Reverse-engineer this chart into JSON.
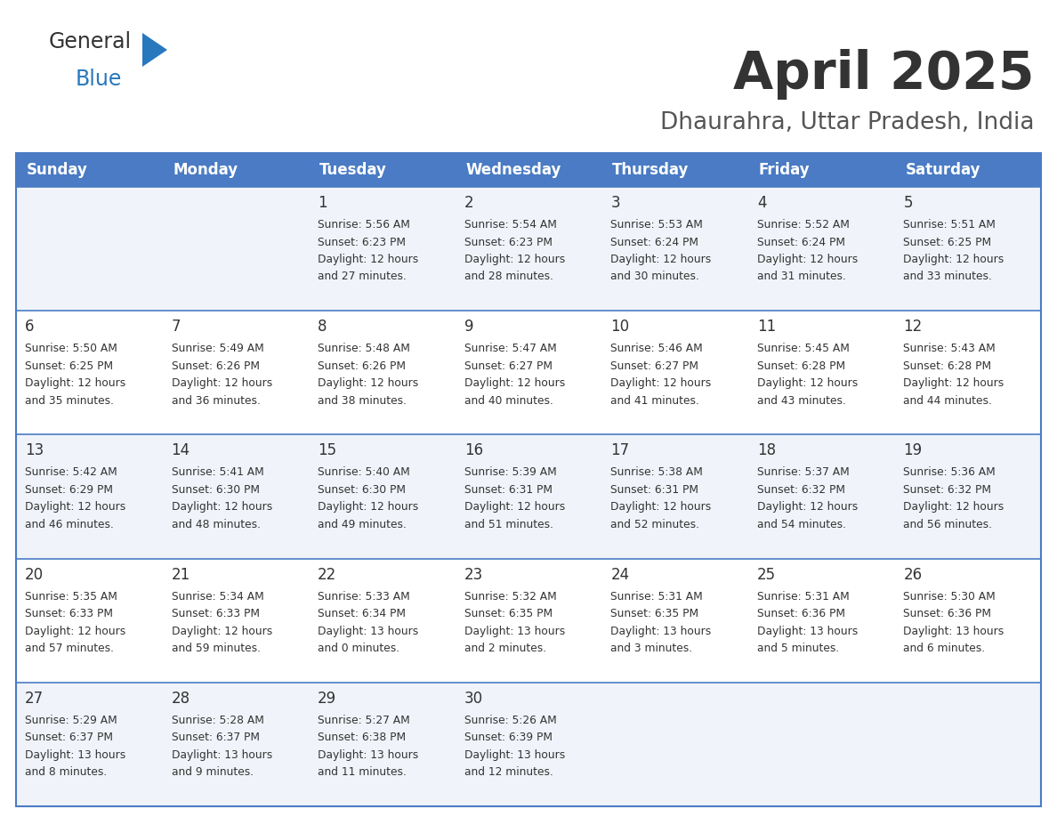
{
  "title": "April 2025",
  "subtitle": "Dhaurahra, Uttar Pradesh, India",
  "header_color": "#4a7bc4",
  "header_text_color": "#FFFFFF",
  "background_color": "#FFFFFF",
  "row_color_even": "#F0F4FA",
  "row_color_odd": "#FFFFFF",
  "border_color": "#4a7bc4",
  "text_color": "#333333",
  "logo_general_color": "#333333",
  "logo_blue_color": "#2878BE",
  "logo_triangle_color": "#2878BE",
  "title_color": "#333333",
  "subtitle_color": "#555555",
  "days_of_week": [
    "Sunday",
    "Monday",
    "Tuesday",
    "Wednesday",
    "Thursday",
    "Friday",
    "Saturday"
  ],
  "weeks": [
    [
      {
        "day": "",
        "info": ""
      },
      {
        "day": "",
        "info": ""
      },
      {
        "day": "1",
        "info": "Sunrise: 5:56 AM\nSunset: 6:23 PM\nDaylight: 12 hours\nand 27 minutes."
      },
      {
        "day": "2",
        "info": "Sunrise: 5:54 AM\nSunset: 6:23 PM\nDaylight: 12 hours\nand 28 minutes."
      },
      {
        "day": "3",
        "info": "Sunrise: 5:53 AM\nSunset: 6:24 PM\nDaylight: 12 hours\nand 30 minutes."
      },
      {
        "day": "4",
        "info": "Sunrise: 5:52 AM\nSunset: 6:24 PM\nDaylight: 12 hours\nand 31 minutes."
      },
      {
        "day": "5",
        "info": "Sunrise: 5:51 AM\nSunset: 6:25 PM\nDaylight: 12 hours\nand 33 minutes."
      }
    ],
    [
      {
        "day": "6",
        "info": "Sunrise: 5:50 AM\nSunset: 6:25 PM\nDaylight: 12 hours\nand 35 minutes."
      },
      {
        "day": "7",
        "info": "Sunrise: 5:49 AM\nSunset: 6:26 PM\nDaylight: 12 hours\nand 36 minutes."
      },
      {
        "day": "8",
        "info": "Sunrise: 5:48 AM\nSunset: 6:26 PM\nDaylight: 12 hours\nand 38 minutes."
      },
      {
        "day": "9",
        "info": "Sunrise: 5:47 AM\nSunset: 6:27 PM\nDaylight: 12 hours\nand 40 minutes."
      },
      {
        "day": "10",
        "info": "Sunrise: 5:46 AM\nSunset: 6:27 PM\nDaylight: 12 hours\nand 41 minutes."
      },
      {
        "day": "11",
        "info": "Sunrise: 5:45 AM\nSunset: 6:28 PM\nDaylight: 12 hours\nand 43 minutes."
      },
      {
        "day": "12",
        "info": "Sunrise: 5:43 AM\nSunset: 6:28 PM\nDaylight: 12 hours\nand 44 minutes."
      }
    ],
    [
      {
        "day": "13",
        "info": "Sunrise: 5:42 AM\nSunset: 6:29 PM\nDaylight: 12 hours\nand 46 minutes."
      },
      {
        "day": "14",
        "info": "Sunrise: 5:41 AM\nSunset: 6:30 PM\nDaylight: 12 hours\nand 48 minutes."
      },
      {
        "day": "15",
        "info": "Sunrise: 5:40 AM\nSunset: 6:30 PM\nDaylight: 12 hours\nand 49 minutes."
      },
      {
        "day": "16",
        "info": "Sunrise: 5:39 AM\nSunset: 6:31 PM\nDaylight: 12 hours\nand 51 minutes."
      },
      {
        "day": "17",
        "info": "Sunrise: 5:38 AM\nSunset: 6:31 PM\nDaylight: 12 hours\nand 52 minutes."
      },
      {
        "day": "18",
        "info": "Sunrise: 5:37 AM\nSunset: 6:32 PM\nDaylight: 12 hours\nand 54 minutes."
      },
      {
        "day": "19",
        "info": "Sunrise: 5:36 AM\nSunset: 6:32 PM\nDaylight: 12 hours\nand 56 minutes."
      }
    ],
    [
      {
        "day": "20",
        "info": "Sunrise: 5:35 AM\nSunset: 6:33 PM\nDaylight: 12 hours\nand 57 minutes."
      },
      {
        "day": "21",
        "info": "Sunrise: 5:34 AM\nSunset: 6:33 PM\nDaylight: 12 hours\nand 59 minutes."
      },
      {
        "day": "22",
        "info": "Sunrise: 5:33 AM\nSunset: 6:34 PM\nDaylight: 13 hours\nand 0 minutes."
      },
      {
        "day": "23",
        "info": "Sunrise: 5:32 AM\nSunset: 6:35 PM\nDaylight: 13 hours\nand 2 minutes."
      },
      {
        "day": "24",
        "info": "Sunrise: 5:31 AM\nSunset: 6:35 PM\nDaylight: 13 hours\nand 3 minutes."
      },
      {
        "day": "25",
        "info": "Sunrise: 5:31 AM\nSunset: 6:36 PM\nDaylight: 13 hours\nand 5 minutes."
      },
      {
        "day": "26",
        "info": "Sunrise: 5:30 AM\nSunset: 6:36 PM\nDaylight: 13 hours\nand 6 minutes."
      }
    ],
    [
      {
        "day": "27",
        "info": "Sunrise: 5:29 AM\nSunset: 6:37 PM\nDaylight: 13 hours\nand 8 minutes."
      },
      {
        "day": "28",
        "info": "Sunrise: 5:28 AM\nSunset: 6:37 PM\nDaylight: 13 hours\nand 9 minutes."
      },
      {
        "day": "29",
        "info": "Sunrise: 5:27 AM\nSunset: 6:38 PM\nDaylight: 13 hours\nand 11 minutes."
      },
      {
        "day": "30",
        "info": "Sunrise: 5:26 AM\nSunset: 6:39 PM\nDaylight: 13 hours\nand 12 minutes."
      },
      {
        "day": "",
        "info": ""
      },
      {
        "day": "",
        "info": ""
      },
      {
        "day": "",
        "info": ""
      }
    ]
  ],
  "fig_width": 11.88,
  "fig_height": 9.18,
  "dpi": 100
}
